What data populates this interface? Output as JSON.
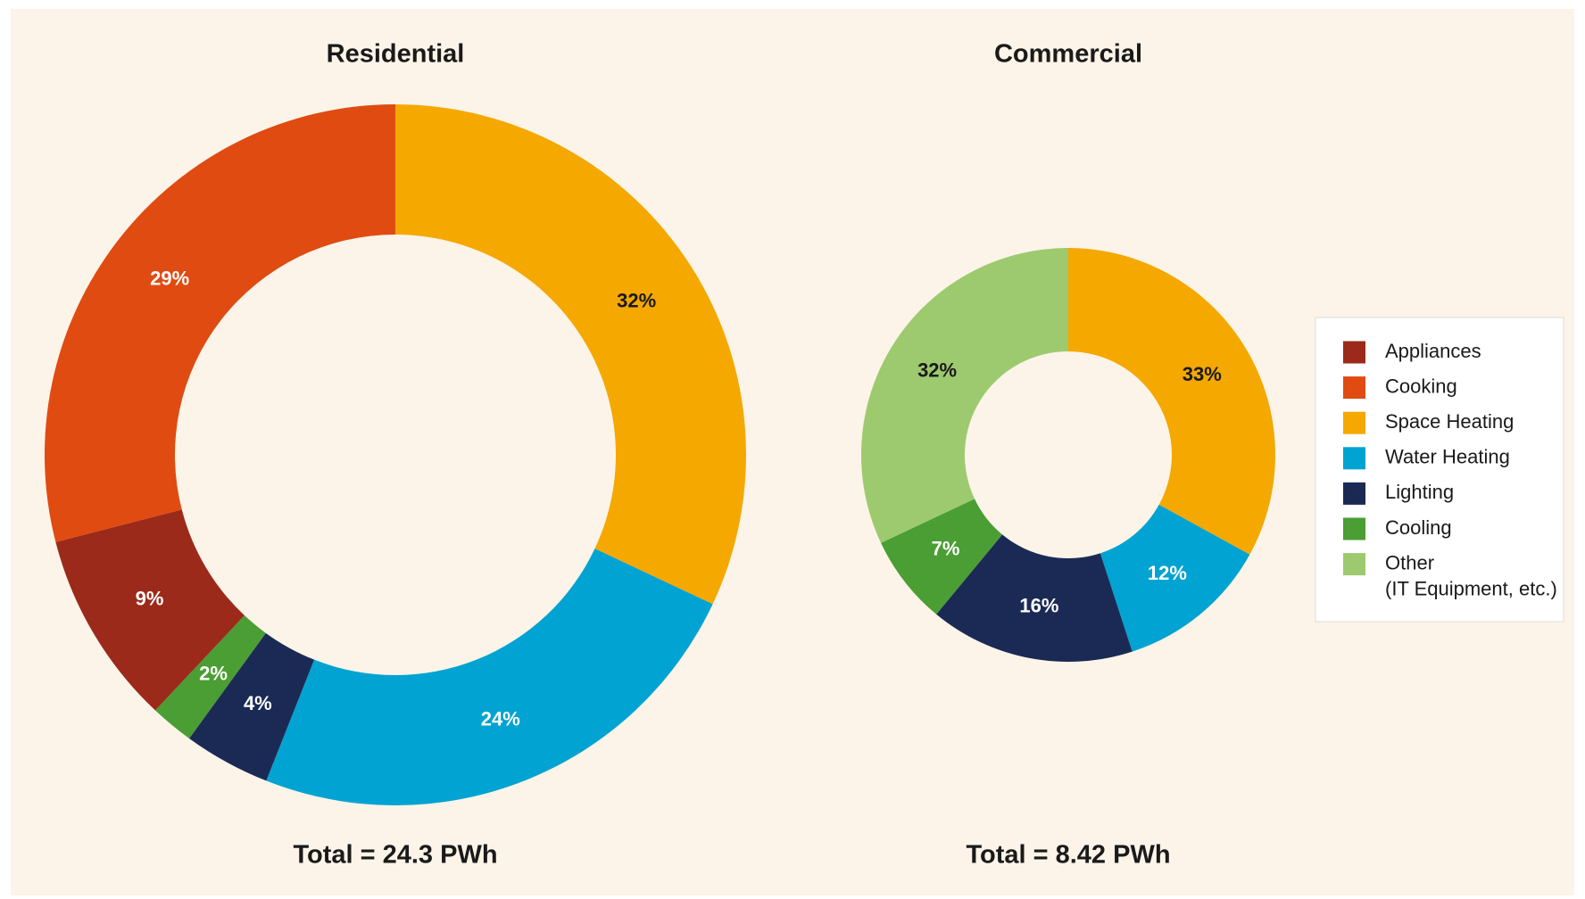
{
  "chart_data": [
    {
      "type": "donut",
      "title": "Residential",
      "total": "Total = 24.3 PWh",
      "categories": [
        "Space Heating",
        "Water Heating",
        "Lighting",
        "Cooling",
        "Appliances",
        "Cooking"
      ],
      "values": [
        32,
        24,
        4,
        2,
        9,
        29
      ],
      "value_labels": [
        "32%",
        "24%",
        "4%",
        "2%",
        "9%",
        "29%"
      ],
      "colors": [
        "#f5a800",
        "#00a3d1",
        "#1b2a55",
        "#4a9e33",
        "#9b2a1a",
        "#e04b12"
      ]
    },
    {
      "type": "donut",
      "title": "Commercial",
      "total": "Total = 8.42 PWh",
      "categories": [
        "Space Heating",
        "Water Heating",
        "Lighting",
        "Cooling",
        "Other"
      ],
      "values": [
        33,
        12,
        16,
        7,
        32
      ],
      "value_labels": [
        "33%",
        "12%",
        "16%",
        "7%",
        "32%"
      ],
      "colors": [
        "#f5a800",
        "#00a3d1",
        "#1b2a55",
        "#4a9e33",
        "#9dca6e"
      ]
    }
  ],
  "legend": {
    "items": [
      {
        "label": "Appliances",
        "color": "#9b2a1a"
      },
      {
        "label": "Cooking",
        "color": "#e04b12"
      },
      {
        "label": "Space Heating",
        "color": "#f5a800"
      },
      {
        "label": "Water Heating",
        "color": "#00a3d1"
      },
      {
        "label": "Lighting",
        "color": "#1b2a55"
      },
      {
        "label": "Cooling",
        "color": "#4a9e33"
      },
      {
        "label": "Other",
        "sublabel": "(IT Equipment, etc.)",
        "color": "#9dca6e"
      }
    ]
  }
}
